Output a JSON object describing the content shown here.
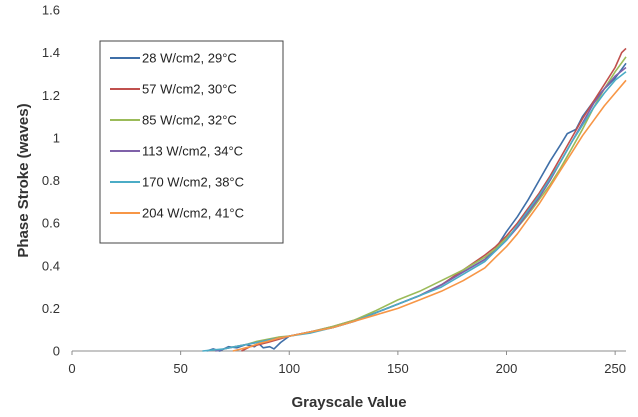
{
  "chart_data": {
    "type": "line",
    "title": "",
    "xlabel": "Grayscale Value",
    "ylabel": "Phase Stroke (waves)",
    "xlim": [
      0,
      255
    ],
    "ylim": [
      0,
      1.6
    ],
    "xticks": [
      0,
      50,
      100,
      150,
      200,
      250
    ],
    "yticks": [
      0,
      0.2,
      0.4,
      0.6,
      0.8,
      1,
      1.2,
      1.4,
      1.6
    ],
    "grid": false,
    "legend_position": "top-left",
    "series": [
      {
        "name": "28 W/cm2, 29°C",
        "color": "#3f6fa8",
        "points": [
          [
            62,
            0.0
          ],
          [
            65,
            0.01
          ],
          [
            68,
            0.0
          ],
          [
            72,
            0.02
          ],
          [
            76,
            0.015
          ],
          [
            80,
            0.03
          ],
          [
            84,
            0.02
          ],
          [
            86,
            0.035
          ],
          [
            88,
            0.015
          ],
          [
            91,
            0.02
          ],
          [
            93,
            0.01
          ],
          [
            96,
            0.04
          ],
          [
            100,
            0.07
          ],
          [
            110,
            0.09
          ],
          [
            120,
            0.11
          ],
          [
            130,
            0.14
          ],
          [
            140,
            0.18
          ],
          [
            150,
            0.22
          ],
          [
            160,
            0.26
          ],
          [
            170,
            0.31
          ],
          [
            180,
            0.37
          ],
          [
            190,
            0.43
          ],
          [
            195,
            0.48
          ],
          [
            200,
            0.56
          ],
          [
            205,
            0.63
          ],
          [
            210,
            0.71
          ],
          [
            215,
            0.8
          ],
          [
            220,
            0.89
          ],
          [
            225,
            0.97
          ],
          [
            228,
            1.02
          ],
          [
            232,
            1.04
          ],
          [
            235,
            1.1
          ],
          [
            240,
            1.17
          ],
          [
            245,
            1.23
          ],
          [
            250,
            1.28
          ],
          [
            255,
            1.35
          ]
        ]
      },
      {
        "name": "57 W/cm2, 30°C",
        "color": "#c0504d",
        "points": [
          [
            78,
            0.0
          ],
          [
            82,
            0.02
          ],
          [
            86,
            0.03
          ],
          [
            90,
            0.04
          ],
          [
            95,
            0.055
          ],
          [
            100,
            0.07
          ],
          [
            110,
            0.09
          ],
          [
            120,
            0.115
          ],
          [
            130,
            0.145
          ],
          [
            140,
            0.18
          ],
          [
            150,
            0.22
          ],
          [
            160,
            0.26
          ],
          [
            170,
            0.31
          ],
          [
            180,
            0.38
          ],
          [
            190,
            0.45
          ],
          [
            195,
            0.49
          ],
          [
            200,
            0.54
          ],
          [
            205,
            0.6
          ],
          [
            210,
            0.67
          ],
          [
            215,
            0.74
          ],
          [
            220,
            0.82
          ],
          [
            225,
            0.91
          ],
          [
            230,
            1.0
          ],
          [
            235,
            1.09
          ],
          [
            240,
            1.17
          ],
          [
            245,
            1.25
          ],
          [
            250,
            1.33
          ],
          [
            253,
            1.4
          ],
          [
            255,
            1.42
          ]
        ]
      },
      {
        "name": "85 W/cm2, 32°C",
        "color": "#9bbb59",
        "points": [
          [
            70,
            0.01
          ],
          [
            75,
            0.02
          ],
          [
            80,
            0.03
          ],
          [
            85,
            0.045
          ],
          [
            90,
            0.055
          ],
          [
            95,
            0.065
          ],
          [
            100,
            0.07
          ],
          [
            110,
            0.09
          ],
          [
            120,
            0.115
          ],
          [
            130,
            0.145
          ],
          [
            140,
            0.19
          ],
          [
            150,
            0.24
          ],
          [
            160,
            0.28
          ],
          [
            170,
            0.33
          ],
          [
            180,
            0.38
          ],
          [
            190,
            0.44
          ],
          [
            195,
            0.48
          ],
          [
            200,
            0.53
          ],
          [
            205,
            0.58
          ],
          [
            210,
            0.64
          ],
          [
            215,
            0.71
          ],
          [
            220,
            0.78
          ],
          [
            225,
            0.86
          ],
          [
            230,
            0.95
          ],
          [
            235,
            1.04
          ],
          [
            240,
            1.14
          ],
          [
            245,
            1.23
          ],
          [
            250,
            1.31
          ],
          [
            255,
            1.38
          ]
        ]
      },
      {
        "name": "113 W/cm2, 34°C",
        "color": "#7f61a9",
        "points": [
          [
            66,
            0.0
          ],
          [
            70,
            0.01
          ],
          [
            75,
            0.02
          ],
          [
            80,
            0.03
          ],
          [
            85,
            0.04
          ],
          [
            90,
            0.05
          ],
          [
            95,
            0.06
          ],
          [
            100,
            0.07
          ],
          [
            110,
            0.09
          ],
          [
            120,
            0.11
          ],
          [
            130,
            0.14
          ],
          [
            140,
            0.18
          ],
          [
            150,
            0.22
          ],
          [
            160,
            0.26
          ],
          [
            170,
            0.31
          ],
          [
            180,
            0.37
          ],
          [
            190,
            0.43
          ],
          [
            195,
            0.47
          ],
          [
            200,
            0.52
          ],
          [
            205,
            0.58
          ],
          [
            210,
            0.65
          ],
          [
            215,
            0.72
          ],
          [
            220,
            0.8
          ],
          [
            225,
            0.89
          ],
          [
            230,
            0.98
          ],
          [
            235,
            1.07
          ],
          [
            240,
            1.16
          ],
          [
            245,
            1.23
          ],
          [
            250,
            1.29
          ],
          [
            255,
            1.33
          ]
        ]
      },
      {
        "name": "170 W/cm2, 38°C",
        "color": "#4bacc6",
        "points": [
          [
            60,
            0.0
          ],
          [
            65,
            0.005
          ],
          [
            70,
            0.01
          ],
          [
            75,
            0.02
          ],
          [
            80,
            0.03
          ],
          [
            85,
            0.04
          ],
          [
            90,
            0.05
          ],
          [
            95,
            0.06
          ],
          [
            100,
            0.07
          ],
          [
            110,
            0.085
          ],
          [
            120,
            0.11
          ],
          [
            130,
            0.14
          ],
          [
            140,
            0.18
          ],
          [
            150,
            0.22
          ],
          [
            160,
            0.26
          ],
          [
            170,
            0.3
          ],
          [
            180,
            0.36
          ],
          [
            190,
            0.42
          ],
          [
            195,
            0.47
          ],
          [
            200,
            0.52
          ],
          [
            205,
            0.59
          ],
          [
            210,
            0.66
          ],
          [
            215,
            0.73
          ],
          [
            220,
            0.81
          ],
          [
            225,
            0.89
          ],
          [
            230,
            0.98
          ],
          [
            235,
            1.06
          ],
          [
            240,
            1.14
          ],
          [
            245,
            1.21
          ],
          [
            250,
            1.27
          ],
          [
            255,
            1.31
          ]
        ]
      },
      {
        "name": "204 W/cm2, 41°C",
        "color": "#f79646",
        "points": [
          [
            74,
            0.0
          ],
          [
            78,
            0.01
          ],
          [
            82,
            0.02
          ],
          [
            86,
            0.035
          ],
          [
            90,
            0.045
          ],
          [
            95,
            0.06
          ],
          [
            100,
            0.07
          ],
          [
            110,
            0.09
          ],
          [
            120,
            0.11
          ],
          [
            130,
            0.14
          ],
          [
            140,
            0.17
          ],
          [
            150,
            0.2
          ],
          [
            160,
            0.24
          ],
          [
            170,
            0.28
          ],
          [
            180,
            0.33
          ],
          [
            190,
            0.39
          ],
          [
            195,
            0.44
          ],
          [
            200,
            0.49
          ],
          [
            205,
            0.55
          ],
          [
            210,
            0.62
          ],
          [
            215,
            0.69
          ],
          [
            220,
            0.77
          ],
          [
            225,
            0.85
          ],
          [
            230,
            0.93
          ],
          [
            235,
            1.01
          ],
          [
            240,
            1.08
          ],
          [
            245,
            1.15
          ],
          [
            250,
            1.21
          ],
          [
            255,
            1.27
          ]
        ]
      }
    ]
  }
}
